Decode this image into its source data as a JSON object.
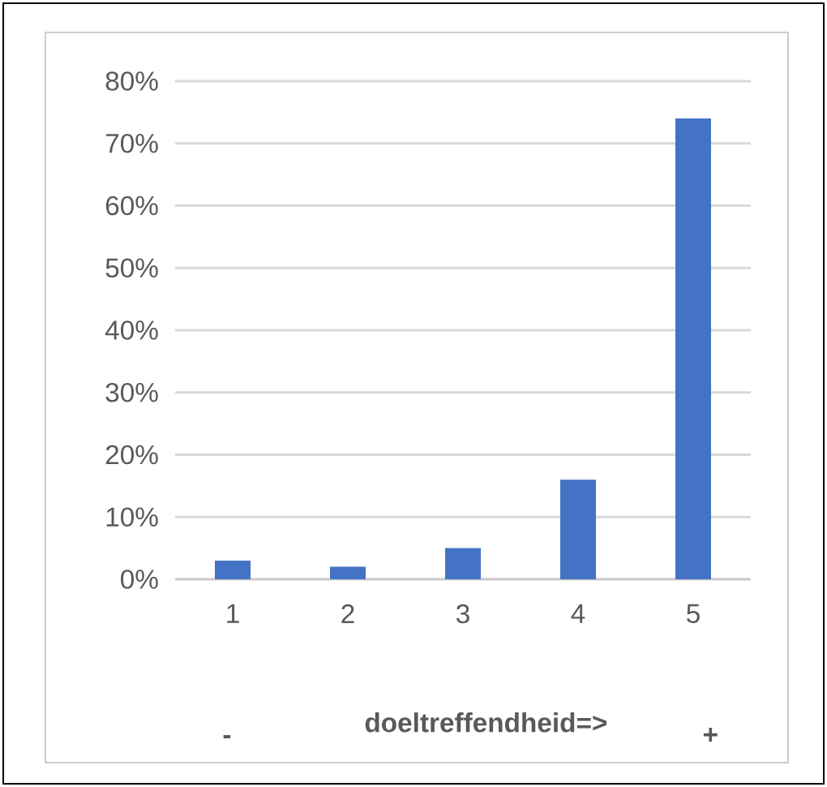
{
  "chart_data": {
    "type": "bar",
    "xlabel": "doeltreffendheid=>",
    "annotations": [
      "-",
      "+"
    ],
    "categories": [
      "1",
      "2",
      "3",
      "4",
      "5"
    ],
    "values": [
      3,
      2,
      5,
      16,
      74
    ],
    "color": "#4472c4",
    "ylim": [
      0,
      80
    ],
    "yticks": [
      {
        "value": 0,
        "label": "0%"
      },
      {
        "value": 10,
        "label": "10%"
      },
      {
        "value": 20,
        "label": "20%"
      },
      {
        "value": 30,
        "label": "30%"
      },
      {
        "value": 40,
        "label": "40%"
      },
      {
        "value": 50,
        "label": "50%"
      },
      {
        "value": 60,
        "label": "60%"
      },
      {
        "value": 70,
        "label": "70%"
      },
      {
        "value": 80,
        "label": "80%"
      }
    ],
    "grid": "y"
  }
}
